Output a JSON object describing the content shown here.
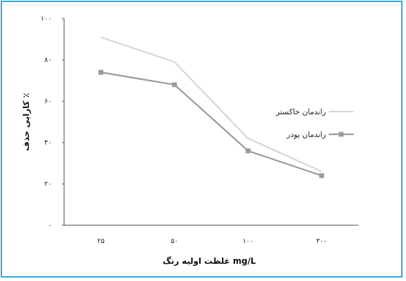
{
  "chart_data": {
    "type": "line",
    "categories": [
      "۲۵",
      "۵۰",
      "۱۰۰",
      "۳۰۰"
    ],
    "series": [
      {
        "name": "راندمان خاکستر",
        "values": [
          91,
          79,
          42,
          26
        ],
        "color": "#d6d6d6",
        "marker": "none"
      },
      {
        "name": "راندمان پودر",
        "values": [
          74,
          68,
          36,
          24
        ],
        "color": "#9a9a9a",
        "marker": "square"
      }
    ],
    "ylim": [
      0,
      100
    ],
    "yticks": [
      {
        "value": 0,
        "label": "۰"
      },
      {
        "value": 20,
        "label": "۲۰"
      },
      {
        "value": 40,
        "label": "۴۰"
      },
      {
        "value": 60,
        "label": "۶۰"
      },
      {
        "value": 80,
        "label": "۸۰"
      },
      {
        "value": 100,
        "label": "۱۰۰"
      }
    ],
    "xlabel": "غلظت اولیه رنگ mg/L",
    "ylabel": "کارایی حذف ٪",
    "grid": false,
    "legend_position": "right",
    "frame_color": "#29a8e0"
  }
}
